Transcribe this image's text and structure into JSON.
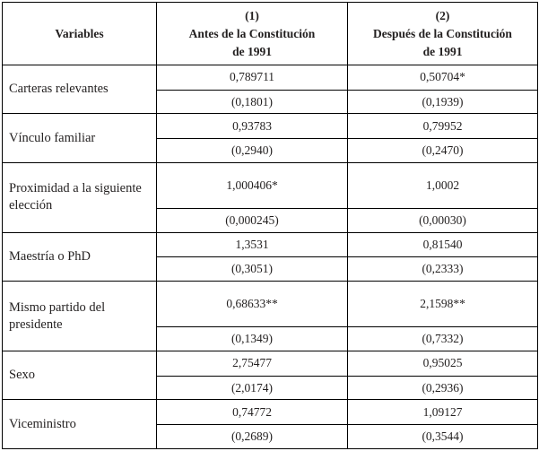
{
  "table": {
    "header": {
      "variables_label": "Variables",
      "col1": {
        "number": "(1)",
        "line1": "Antes de la Constitución",
        "line2": "de 1991"
      },
      "col2": {
        "number": "(2)",
        "line1": "Después de la Constitución",
        "line2": "de 1991"
      }
    },
    "rows": [
      {
        "variable": "Carteras relevantes",
        "coef1": "0,789711",
        "se1": "(0,1801)",
        "coef2": "0,50704*",
        "se2": "(0,1939)"
      },
      {
        "variable": "Vínculo familiar",
        "coef1": "0,93783",
        "se1": "(0,2940)",
        "coef2": "0,79952",
        "se2": "(0,2470)"
      },
      {
        "variable": "Proximidad a la siguiente elección",
        "coef1": "1,000406*",
        "se1": "(0,000245)",
        "coef2": "1,0002",
        "se2": "(0,00030)"
      },
      {
        "variable": "Maestría o PhD",
        "coef1": "1,3531",
        "se1": "(0,3051)",
        "coef2": "0,81540",
        "se2": "(0,2333)"
      },
      {
        "variable": "Mismo partido del presidente",
        "coef1": "0,68633**",
        "se1": "(0,1349)",
        "coef2": "2,1598**",
        "se2": "(0,7332)"
      },
      {
        "variable": "Sexo",
        "coef1": "2,75477",
        "se1": "(2,0174)",
        "coef2": "0,95025",
        "se2": "(0,2936)"
      },
      {
        "variable": "Viceministro",
        "coef1": "0,74772",
        "se1": "(0,2689)",
        "coef2": "1,09127",
        "se2": "(0,3544)"
      }
    ]
  }
}
